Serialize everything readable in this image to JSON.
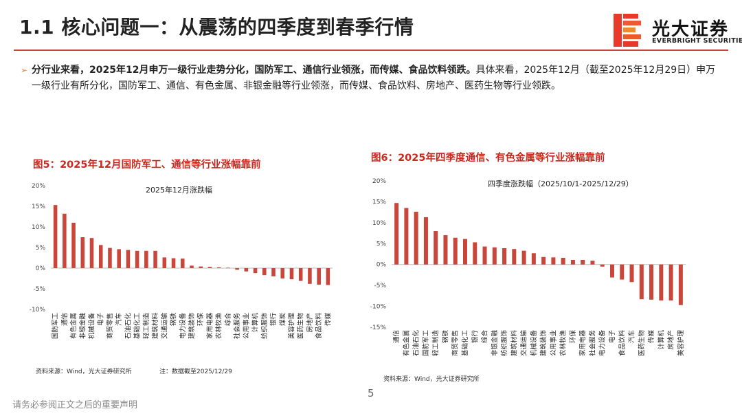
{
  "title": "1.1 核心问题一：从震荡的四季度到春季行情",
  "logo": {
    "cn": "光大证券",
    "en": "EVERBRIGHT SECURITIES"
  },
  "bullet": {
    "bold": "分行业来看，2025年12月申万一级行业走势分化，国防军工、通信行业领涨，而传媒、食品饮料领跌。",
    "rest": "具体来看，2025年12月（截至2025年12月29日）申万一级行业有所分化，国防军工、通信、有色金属、非银金融等行业领涨，而传媒、食品饮料、房地产、医药生物等行业领跌。"
  },
  "fig5": {
    "title": "图5：2025年12月国防军工、通信等行业涨幅靠前",
    "source": "资料来源：Wind，光大证券研究所",
    "note": "注：数据截至2025/12/29"
  },
  "fig6": {
    "title": "图6：2025年四季度通信、有色金属等行业涨幅靠前",
    "source": "资料来源：Wind，光大证券研究所"
  },
  "page_number": "5",
  "footer": "请务必参阅正文之后的重要声明",
  "colors": {
    "bar": "#c8463a",
    "accent": "#c8281e",
    "logo_red": "#e8392b",
    "logo_orange": "#f08a2c"
  },
  "chart_data": [
    {
      "type": "bar",
      "title": "2025年12月涨跌幅",
      "categories": [
        "国防军工",
        "通信",
        "有色金属",
        "非银金融",
        "机械设备",
        "电子",
        "商贸零售",
        "汽车",
        "石油石化",
        "基础化工",
        "轻工制造",
        "建筑材料",
        "交通运输",
        "钢铁",
        "电力设备",
        "建筑装饰",
        "环保",
        "家用电器",
        "农林牧渔",
        "综合",
        "社会服务",
        "公用事业",
        "计算机",
        "纺织服饰",
        "银行",
        "煤炭",
        "美容护理",
        "医药生物",
        "房地产",
        "食品饮料",
        "传媒"
      ],
      "values": [
        15.3,
        13.2,
        11.0,
        7.5,
        7.3,
        5.6,
        4.9,
        4.6,
        4.4,
        4.2,
        4.2,
        4.2,
        2.6,
        2.4,
        2.3,
        0.6,
        0.4,
        0.3,
        0.2,
        0.1,
        -0.4,
        -0.8,
        -1.2,
        -1.7,
        -2.0,
        -2.5,
        -2.7,
        -3.1,
        -3.8,
        -4.0,
        -4.1
      ],
      "yticks": [
        "20%",
        "15%",
        "10%",
        "5%",
        "0%",
        "-5%",
        "-10%"
      ],
      "ylim": [
        -10,
        20
      ]
    },
    {
      "type": "bar",
      "title": "四季度涨跌幅（2025/10/1-2025/12/29）",
      "categories": [
        "通信",
        "有色金属",
        "石油石化",
        "国防军工",
        "轻工制造",
        "钢铁",
        "商贸零售",
        "基础化工",
        "银行",
        "综合",
        "非银金融",
        "纺织服饰",
        "建筑材料",
        "交通运输",
        "机械设备",
        "建筑装饰",
        "公用事业",
        "农林牧渔",
        "环保",
        "家用电器",
        "社会服务",
        "电力设备",
        "电子",
        "食品饮料",
        "汽车",
        "医药生物",
        "传媒",
        "计算机",
        "房地产",
        "美容护理"
      ],
      "values": [
        14.7,
        13.5,
        12.6,
        11.3,
        8.0,
        7.0,
        6.4,
        6.1,
        5.3,
        4.3,
        4.1,
        3.9,
        3.7,
        3.3,
        2.7,
        1.8,
        1.7,
        1.6,
        1.1,
        1.1,
        0.9,
        -0.5,
        -3.1,
        -3.6,
        -4.2,
        -8.3,
        -8.4,
        -8.6,
        -8.6,
        -9.7
      ],
      "yticks": [
        "20%",
        "15%",
        "10%",
        "5%",
        "0%",
        "-5%",
        "-10%",
        "-15%"
      ],
      "ylim": [
        -15,
        20
      ]
    }
  ]
}
